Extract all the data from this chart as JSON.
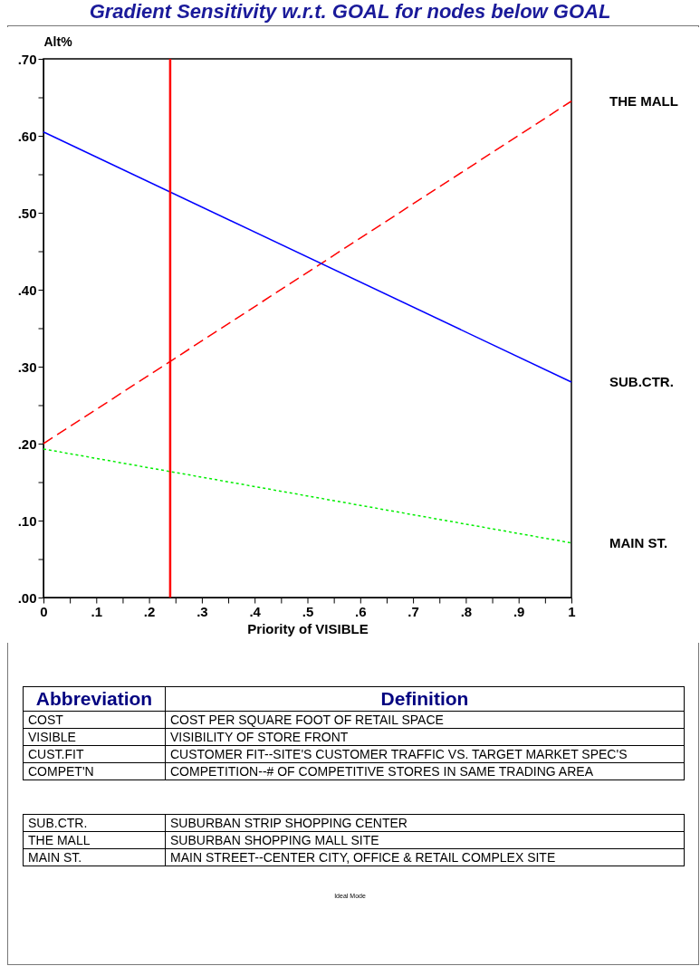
{
  "chart_data": {
    "type": "line",
    "title": "Gradient Sensitivity w.r.t. GOAL for nodes below GOAL",
    "xlabel": "Priority of VISIBLE",
    "ylabel": "Alt%",
    "x": [
      0,
      1
    ],
    "series": [
      {
        "name": "THE MALL",
        "color": "#ff0000",
        "line_style": "dashed",
        "values": [
          0.2,
          0.645
        ]
      },
      {
        "name": "SUB.CTR.",
        "color": "#0000ff",
        "line_style": "solid",
        "values": [
          0.605,
          0.28
        ]
      },
      {
        "name": "MAIN ST.",
        "color": "#00ee00",
        "line_style": "dotted",
        "values": [
          0.193,
          0.071
        ]
      }
    ],
    "xlim": [
      0,
      1
    ],
    "xticks": [
      {
        "value": 0,
        "label": "0"
      },
      {
        "value": 0.05,
        "label": null
      },
      {
        "value": 0.1,
        "label": ".1"
      },
      {
        "value": 0.15,
        "label": null
      },
      {
        "value": 0.2,
        "label": ".2"
      },
      {
        "value": 0.25,
        "label": null
      },
      {
        "value": 0.3,
        "label": ".3"
      },
      {
        "value": 0.35,
        "label": null
      },
      {
        "value": 0.4,
        "label": ".4"
      },
      {
        "value": 0.45,
        "label": null
      },
      {
        "value": 0.5,
        "label": ".5"
      },
      {
        "value": 0.55,
        "label": null
      },
      {
        "value": 0.6,
        "label": ".6"
      },
      {
        "value": 0.65,
        "label": null
      },
      {
        "value": 0.7,
        "label": ".7"
      },
      {
        "value": 0.75,
        "label": null
      },
      {
        "value": 0.8,
        "label": ".8"
      },
      {
        "value": 0.85,
        "label": null
      },
      {
        "value": 0.9,
        "label": ".9"
      },
      {
        "value": 0.95,
        "label": null
      },
      {
        "value": 1,
        "label": "1"
      }
    ],
    "ylim": [
      0,
      0.7
    ],
    "yticks": [
      {
        "value": 0,
        "label": ".00"
      },
      {
        "value": 0.05,
        "label": null
      },
      {
        "value": 0.1,
        "label": ".10"
      },
      {
        "value": 0.15,
        "label": null
      },
      {
        "value": 0.2,
        "label": ".20"
      },
      {
        "value": 0.25,
        "label": null
      },
      {
        "value": 0.3,
        "label": ".30"
      },
      {
        "value": 0.35,
        "label": null
      },
      {
        "value": 0.4,
        "label": ".40"
      },
      {
        "value": 0.45,
        "label": null
      },
      {
        "value": 0.5,
        "label": ".50"
      },
      {
        "value": 0.55,
        "label": null
      },
      {
        "value": 0.6,
        "label": ".60"
      },
      {
        "value": 0.65,
        "label": null
      },
      {
        "value": 0.7,
        "label": ".70"
      }
    ],
    "ref_lines": [
      {
        "axis": "x",
        "value": 0.24,
        "color": "#ff0000"
      }
    ],
    "grid": false,
    "legend": false,
    "annotations": [
      "Abbreviation",
      "Definition",
      "COST",
      "COST PER SQUARE FOOT OF RETAIL SPACE",
      "VISIBLE",
      "VISIBILITY OF STORE FRONT",
      "CUST.FIT",
      "CUSTOMER FIT--SITE'S CUSTOMER TRAFFIC VS. TARGET MARKET SPEC'S",
      "COMPET'N",
      "COMPETITION--# OF COMPETITIVE STORES IN SAME TRADING AREA",
      "SUB.CTR.",
      "SUBURBAN STRIP SHOPPING CENTER",
      "THE MALL",
      "SUBURBAN SHOPPING MALL SITE",
      "MAIN ST.",
      "MAIN STREET--CENTER CITY, OFFICE & RETAIL COMPLEX SITE",
      "Ideal Mode"
    ]
  }
}
